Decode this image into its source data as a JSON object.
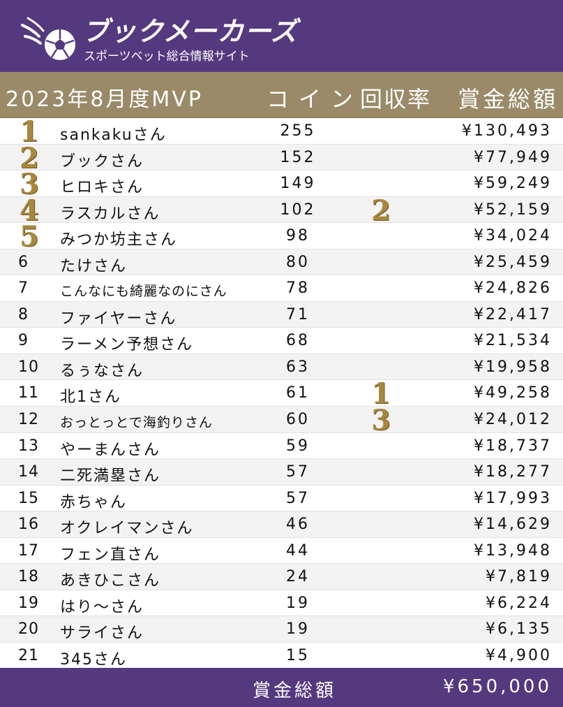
{
  "brand": {
    "name": "ブックメーカーズ",
    "tagline": "スポーツベット総合情報サイト",
    "logo_icon": "soccer-ball-flame-icon",
    "color_primary": "#55397f",
    "color_gold": "#9a8a68"
  },
  "table_header": {
    "title": "2023年8月度MVP",
    "coin": "コイン",
    "rate": "回収率",
    "prize": "賞金総額"
  },
  "rows": [
    {
      "rank": "1",
      "name": "sankakuさん",
      "coin": "255",
      "rate": "",
      "prize": "¥130,493"
    },
    {
      "rank": "2",
      "name": "ブックさん",
      "coin": "152",
      "rate": "",
      "prize": "¥77,949"
    },
    {
      "rank": "3",
      "name": "ヒロキさん",
      "coin": "149",
      "rate": "",
      "prize": "¥59,249"
    },
    {
      "rank": "4",
      "name": "ラスカルさん",
      "coin": "102",
      "rate": "2",
      "prize": "¥52,159"
    },
    {
      "rank": "5",
      "name": "みつか坊主さん",
      "coin": "98",
      "rate": "",
      "prize": "¥34,024"
    },
    {
      "rank": "6",
      "name": "たけさん",
      "coin": "80",
      "rate": "",
      "prize": "¥25,459"
    },
    {
      "rank": "7",
      "name": "こんなにも綺麗なのにさん",
      "coin": "78",
      "rate": "",
      "prize": "¥24,826"
    },
    {
      "rank": "8",
      "name": "ファイヤーさん",
      "coin": "71",
      "rate": "",
      "prize": "¥22,417"
    },
    {
      "rank": "9",
      "name": "ラーメン予想さん",
      "coin": "68",
      "rate": "",
      "prize": "¥21,534"
    },
    {
      "rank": "10",
      "name": "るぅなさん",
      "coin": "63",
      "rate": "",
      "prize": "¥19,958"
    },
    {
      "rank": "11",
      "name": "北1さん",
      "coin": "61",
      "rate": "1",
      "prize": "¥49,258"
    },
    {
      "rank": "12",
      "name": "おっとっとで海釣りさん",
      "coin": "60",
      "rate": "3",
      "prize": "¥24,012"
    },
    {
      "rank": "13",
      "name": "やーまんさん",
      "coin": "59",
      "rate": "",
      "prize": "¥18,737"
    },
    {
      "rank": "14",
      "name": "二死満塁さん",
      "coin": "57",
      "rate": "",
      "prize": "¥18,277"
    },
    {
      "rank": "15",
      "name": "赤ちゃん",
      "coin": "57",
      "rate": "",
      "prize": "¥17,993"
    },
    {
      "rank": "16",
      "name": "オクレイマンさん",
      "coin": "46",
      "rate": "",
      "prize": "¥14,629"
    },
    {
      "rank": "17",
      "name": "フェン直さん",
      "coin": "44",
      "rate": "",
      "prize": "¥13,948"
    },
    {
      "rank": "18",
      "name": "あきひこさん",
      "coin": "24",
      "rate": "",
      "prize": "¥7,819"
    },
    {
      "rank": "19",
      "name": "はり～さん",
      "coin": "19",
      "rate": "",
      "prize": "¥6,224"
    },
    {
      "rank": "20",
      "name": "サライさん",
      "coin": "19",
      "rate": "",
      "prize": "¥6,135"
    },
    {
      "rank": "21",
      "name": "345さん",
      "coin": "15",
      "rate": "",
      "prize": "¥4,900"
    }
  ],
  "footer": {
    "label": "賞金総額",
    "total": "¥650,000"
  }
}
